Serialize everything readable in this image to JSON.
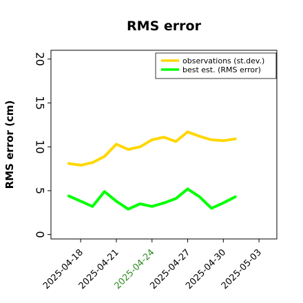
{
  "chart_data": {
    "type": "line",
    "title": "RMS error",
    "ylabel": "RMS error (cm)",
    "xlabel": "",
    "ylim": [
      -0.5,
      21
    ],
    "xlim": [
      "2025-04-15T12:00",
      "2025-05-04T12:00"
    ],
    "yticks": [
      0,
      5,
      10,
      15,
      20
    ],
    "xticks": [
      {
        "date": "2025-04-18",
        "color": "#000000"
      },
      {
        "date": "2025-04-21",
        "color": "#000000"
      },
      {
        "date": "2025-04-24",
        "color": "#2e8b22"
      },
      {
        "date": "2025-04-27",
        "color": "#000000"
      },
      {
        "date": "2025-04-30",
        "color": "#000000"
      },
      {
        "date": "2025-05-03",
        "color": "#000000"
      }
    ],
    "grid": false,
    "legend_position": "top-right",
    "series": [
      {
        "name": "observations (st.dev.)",
        "color": "#ffd700",
        "x": [
          "2025-04-17",
          "2025-04-18",
          "2025-04-19",
          "2025-04-20",
          "2025-04-21",
          "2025-04-22",
          "2025-04-23",
          "2025-04-24",
          "2025-04-25",
          "2025-04-26",
          "2025-04-27",
          "2025-04-28",
          "2025-04-29",
          "2025-04-30",
          "2025-05-01"
        ],
        "y": [
          8.1,
          7.9,
          8.2,
          8.9,
          10.3,
          9.7,
          10.0,
          10.8,
          11.1,
          10.6,
          11.7,
          11.2,
          10.8,
          10.7,
          10.9
        ]
      },
      {
        "name": "best est. (RMS error)",
        "color": "#00ff00",
        "x": [
          "2025-04-17",
          "2025-04-18",
          "2025-04-19",
          "2025-04-20",
          "2025-04-21",
          "2025-04-22",
          "2025-04-23",
          "2025-04-24",
          "2025-04-25",
          "2025-04-26",
          "2025-04-27",
          "2025-04-28",
          "2025-04-29",
          "2025-04-30",
          "2025-05-01"
        ],
        "y": [
          4.4,
          3.8,
          3.2,
          4.9,
          3.8,
          2.9,
          3.5,
          3.2,
          3.6,
          4.1,
          5.2,
          4.3,
          3.0,
          3.6,
          4.3
        ]
      }
    ]
  }
}
